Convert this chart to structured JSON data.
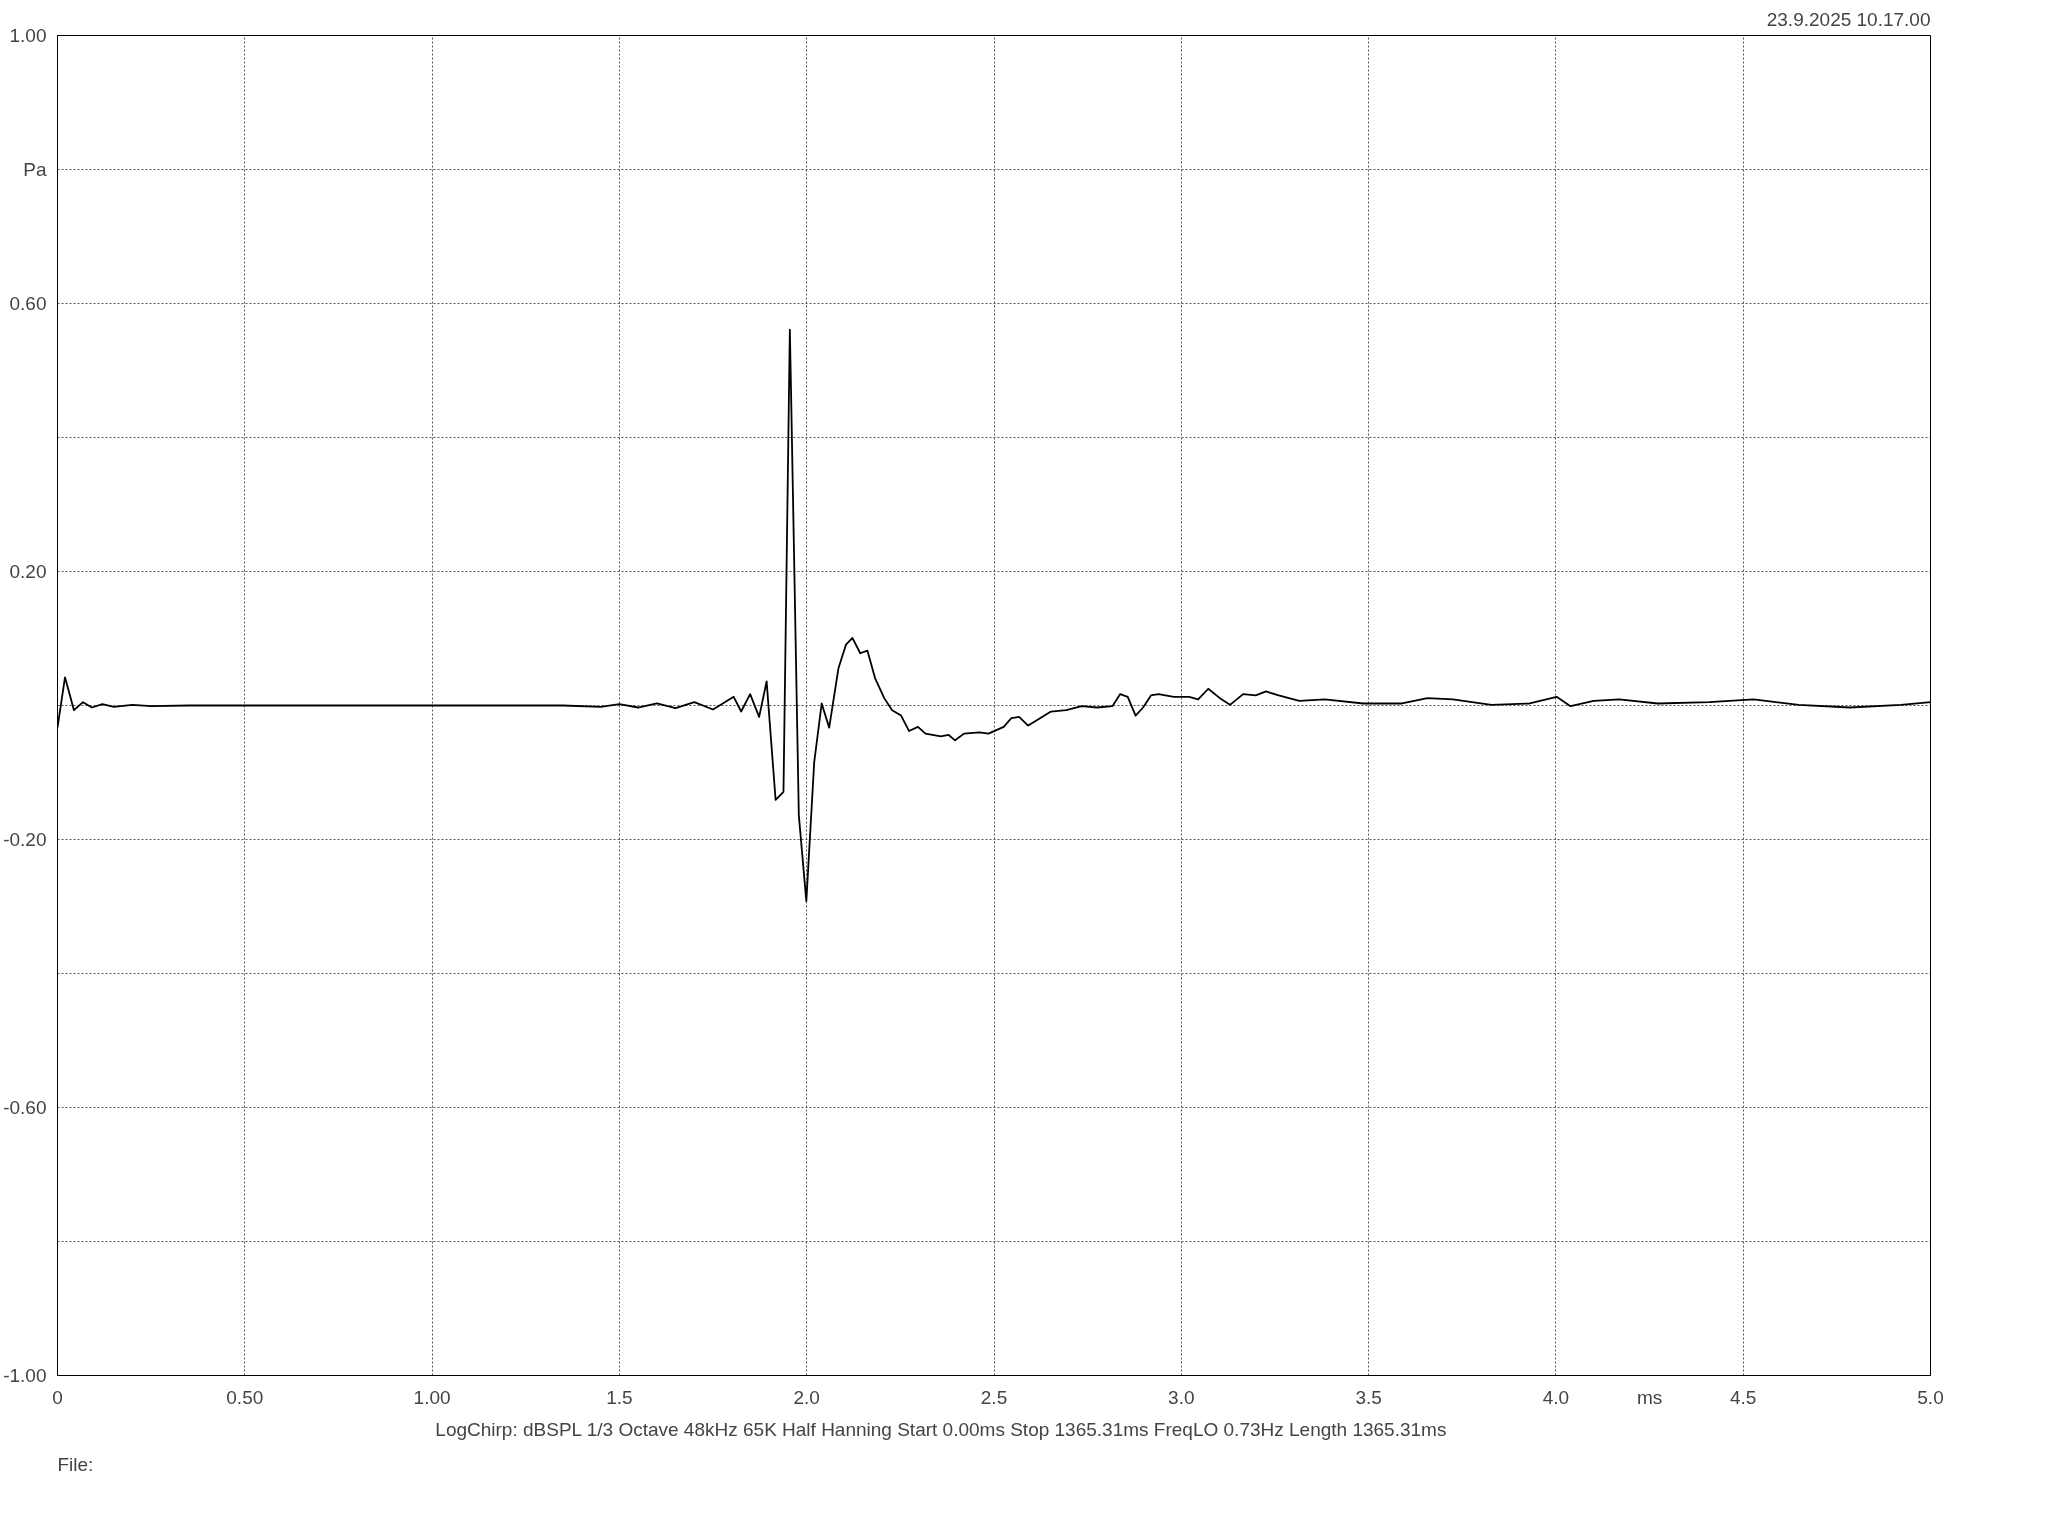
{
  "chart_data": {
    "type": "line",
    "xlabel": "ms",
    "ylabel": "Pa",
    "annotations": [
      "23.9.2025 10.17.00",
      "LogChirp:  dBSPL   1/3 Octave   48kHz   65K   Half Hanning   Start 0.00ms    Stop 1365.31ms    FreqLO 0.73Hz    Length 1365.31ms",
      "File:"
    ],
    "xlim": [
      0,
      5
    ],
    "ylim": [
      -1,
      1
    ],
    "xticks": [
      0,
      {
        "value": 0.5,
        "label": "0.50"
      },
      {
        "value": 1,
        "label": "1.00"
      },
      1.5,
      {
        "value": 2,
        "label": "2.0"
      },
      2.5,
      {
        "value": 3,
        "label": "3.0"
      },
      3.5,
      {
        "value": 4,
        "label": "4.0"
      },
      4.5,
      {
        "value": 5,
        "label": "5.0"
      }
    ],
    "yticks": [
      {
        "value": -1,
        "label": "-1.00"
      },
      {
        "value": -0.8,
        "label": null
      },
      {
        "value": -0.6,
        "label": "-0.60"
      },
      {
        "value": -0.4,
        "label": null
      },
      {
        "value": -0.2,
        "label": "-0.20"
      },
      {
        "value": 0,
        "label": null
      },
      {
        "value": 0.2,
        "label": "0.20"
      },
      {
        "value": 0.4,
        "label": null
      },
      {
        "value": 0.6,
        "label": "0.60"
      },
      {
        "value": 0.8,
        "label": null
      },
      {
        "value": 1,
        "label": "1.00"
      }
    ],
    "grid": true,
    "marker": "none",
    "line_style": "solid",
    "series": [
      {
        "color": "#000000",
        "x": [
          0,
          0.02,
          0.044,
          0.068,
          0.092,
          0.12,
          0.15,
          0.2,
          0.25,
          0.35,
          0.6,
          1.0,
          1.35,
          1.45,
          1.5,
          1.55,
          1.6,
          1.65,
          1.7,
          1.75,
          1.805,
          1.825,
          1.849,
          1.873,
          1.893,
          1.917,
          1.938,
          1.955,
          1.958,
          1.979,
          1.999,
          2.02,
          2.04,
          2.06,
          2.085,
          2.105,
          2.122,
          2.143,
          2.162,
          2.183,
          2.207,
          2.228,
          2.252,
          2.273,
          2.297,
          2.317,
          2.358,
          2.379,
          2.396,
          2.42,
          2.461,
          2.485,
          2.526,
          2.546,
          2.567,
          2.591,
          2.611,
          2.652,
          2.693,
          2.734,
          2.775,
          2.816,
          2.837,
          2.857,
          2.878,
          2.898,
          2.919,
          2.939,
          2.98,
          3.021,
          3.045,
          3.072,
          3.103,
          3.13,
          3.165,
          3.199,
          3.226,
          3.26,
          3.315,
          3.383,
          3.486,
          3.589,
          3.657,
          3.725,
          3.828,
          3.93,
          4.002,
          4.039,
          4.101,
          4.169,
          4.272,
          4.409,
          4.528,
          4.648,
          4.785,
          4.921,
          5.0
        ],
        "values": [
          -0.033,
          0.042,
          -0.007,
          0.005,
          -0.003,
          0.002,
          -0.002,
          0.001,
          -0.001,
          0,
          0,
          0,
          0,
          -0.002,
          0.002,
          -0.003,
          0.003,
          -0.004,
          0.005,
          -0.006,
          0.013,
          -0.009,
          0.017,
          -0.017,
          0.036,
          -0.141,
          -0.129,
          0.561,
          0.475,
          -0.164,
          -0.292,
          -0.085,
          0.003,
          -0.033,
          0.056,
          0.091,
          0.101,
          0.078,
          0.082,
          0.04,
          0.011,
          -0.007,
          -0.015,
          -0.038,
          -0.032,
          -0.042,
          -0.046,
          -0.044,
          -0.052,
          -0.042,
          -0.04,
          -0.042,
          -0.032,
          -0.019,
          -0.017,
          -0.03,
          -0.023,
          -0.009,
          -0.007,
          -0.001,
          -0.003,
          -0.001,
          0.017,
          0.013,
          -0.015,
          -0.003,
          0.015,
          0.017,
          0.013,
          0.013,
          0.009,
          0.025,
          0.011,
          0.001,
          0.017,
          0.015,
          0.021,
          0.015,
          0.007,
          0.009,
          0.003,
          0.003,
          0.011,
          0.009,
          0.001,
          0.003,
          0.013,
          -0.001,
          0.007,
          0.009,
          0.003,
          0.005,
          0.009,
          0.001,
          -0.003,
          0.001,
          0.005
        ]
      }
    ]
  }
}
